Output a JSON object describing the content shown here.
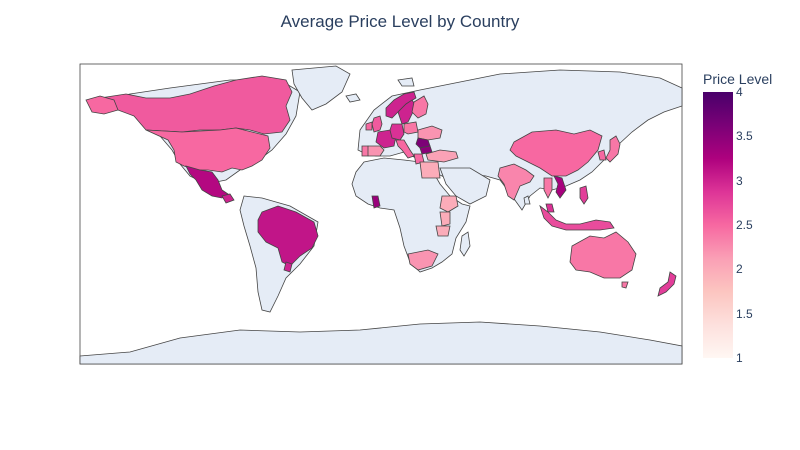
{
  "chart_data": {
    "type": "choropleth",
    "title": "Average Price Level by Country",
    "colorbar": {
      "title": "Price Level",
      "range": [
        1,
        4
      ],
      "ticks": [
        "1",
        "1.5",
        "2",
        "2.5",
        "3",
        "3.5",
        "4"
      ],
      "colorscale": [
        "#fff7f3",
        "#fde0dd",
        "#fcc5c0",
        "#fa9fb5",
        "#f768a1",
        "#dd3497",
        "#ae017e",
        "#7a0177",
        "#49006a"
      ]
    },
    "projection": "equirectangular",
    "land_color": "#e5ecf6",
    "countries": [
      {
        "name": "Canada",
        "value": 2.6
      },
      {
        "name": "United States",
        "value": 2.5
      },
      {
        "name": "Mexico",
        "value": 3.2
      },
      {
        "name": "Guatemala",
        "value": 3.0
      },
      {
        "name": "Brazil",
        "value": 3.1
      },
      {
        "name": "Uruguay",
        "value": 3.0
      },
      {
        "name": "Norway",
        "value": 3.0
      },
      {
        "name": "Sweden",
        "value": 3.0
      },
      {
        "name": "Finland",
        "value": 2.4
      },
      {
        "name": "United Kingdom",
        "value": 2.6
      },
      {
        "name": "Ireland",
        "value": 2.5
      },
      {
        "name": "France",
        "value": 3.0
      },
      {
        "name": "Spain",
        "value": 2.2
      },
      {
        "name": "Portugal",
        "value": 2.4
      },
      {
        "name": "Germany",
        "value": 2.9
      },
      {
        "name": "Italy",
        "value": 2.5
      },
      {
        "name": "Poland",
        "value": 2.4
      },
      {
        "name": "Ukraine",
        "value": 2.2
      },
      {
        "name": "Romania",
        "value": 3.6
      },
      {
        "name": "Bulgaria",
        "value": 3.5
      },
      {
        "name": "Greece",
        "value": 2.5
      },
      {
        "name": "Turkey",
        "value": 2.1
      },
      {
        "name": "Egypt",
        "value": 2.0
      },
      {
        "name": "Ghana",
        "value": 3.4
      },
      {
        "name": "Ethiopia",
        "value": 2.0
      },
      {
        "name": "Kenya",
        "value": 2.0
      },
      {
        "name": "Tanzania",
        "value": 2.0
      },
      {
        "name": "South Africa",
        "value": 2.2
      },
      {
        "name": "India",
        "value": 2.3
      },
      {
        "name": "China",
        "value": 2.5
      },
      {
        "name": "South Korea",
        "value": 2.5
      },
      {
        "name": "Japan",
        "value": 2.4
      },
      {
        "name": "Thailand",
        "value": 2.4
      },
      {
        "name": "Vietnam",
        "value": 3.3
      },
      {
        "name": "Malaysia",
        "value": 2.9
      },
      {
        "name": "Indonesia",
        "value": 2.7
      },
      {
        "name": "Philippines",
        "value": 2.8
      },
      {
        "name": "Australia",
        "value": 2.4
      },
      {
        "name": "New Zealand",
        "value": 2.8
      }
    ]
  }
}
